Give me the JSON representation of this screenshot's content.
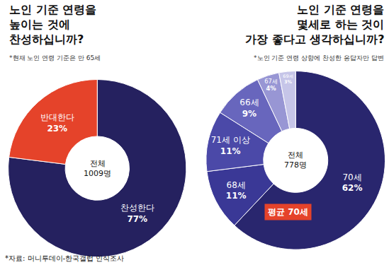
{
  "chart_data": [
    {
      "type": "pie",
      "title": "노인 기준 연령을\n높이는 것에\n찬성하십니까?",
      "subtitle": "*현재 노인 연령 기준은 만 65세",
      "center_text": "전체\n1009명",
      "categories": [
        "찬성한다",
        "반대한다"
      ],
      "values": [
        77,
        23
      ],
      "value_labels": [
        "77%",
        "23%"
      ],
      "colors": [
        "#25215f",
        "#e5432a"
      ],
      "data_labels": true
    },
    {
      "type": "pie",
      "title": "노인 기준 연령을\n몇세로 하는 것이\n가장 좋다고 생각하십니까?",
      "subtitle": "*노인 기준 연령 상향에 찬성한 응답자만 답변",
      "center_text": "전체\n778명",
      "note": "평균 70세",
      "categories": [
        "70세",
        "68세",
        "71세 이상",
        "66세",
        "67세",
        "69세"
      ],
      "values": [
        62,
        11,
        11,
        9,
        4,
        3
      ],
      "value_labels": [
        "62%",
        "11%",
        "11%",
        "9%",
        "4%",
        "3%"
      ],
      "colors": [
        "#29266e",
        "#3a3896",
        "#4b49a8",
        "#6866bd",
        "#9896d4",
        "#c6c5e8"
      ],
      "data_labels": true
    }
  ],
  "source": "*자료: 머니투데이-한국갤럽 인식조사"
}
